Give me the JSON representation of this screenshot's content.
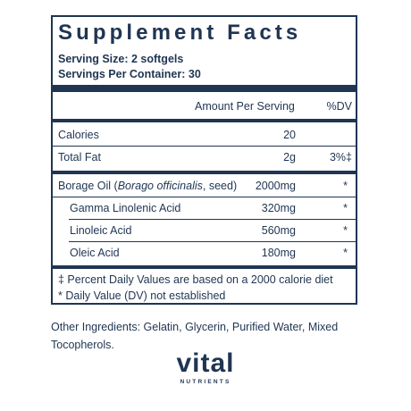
{
  "panel": {
    "title": "Supplement Facts",
    "serving_size": "Serving Size: 2 softgels",
    "servings_per_container": "Servings Per Container: 30",
    "header": {
      "amount": "Amount Per Serving",
      "dv": "%DV"
    },
    "rows": [
      {
        "name": "Calories",
        "amount": "20",
        "dv": ""
      },
      {
        "name": "Total Fat",
        "amount": "2g",
        "dv": "3%‡"
      },
      {
        "name_prefix": "Borage Oil (",
        "name_italic": "Borago officinalis",
        "name_suffix": ", seed)",
        "amount": "2000mg",
        "dv": "*"
      },
      {
        "name": "Gamma Linolenic Acid",
        "amount": "320mg",
        "dv": "*"
      },
      {
        "name": "Linoleic Acid",
        "amount": "560mg",
        "dv": "*"
      },
      {
        "name": "Oleic Acid",
        "amount": "180mg",
        "dv": "*"
      }
    ],
    "footnotes": [
      "‡ Percent Daily Values are based on a 2000 calorie diet",
      "* Daily Value (DV) not established"
    ]
  },
  "other_ingredients": "Other Ingredients: Gelatin, Glycerin, Purified Water, Mixed Tocopherols.",
  "brand": {
    "name": "vital",
    "sub": "NUTRIENTS"
  },
  "colors": {
    "ink": "#1f3552"
  }
}
